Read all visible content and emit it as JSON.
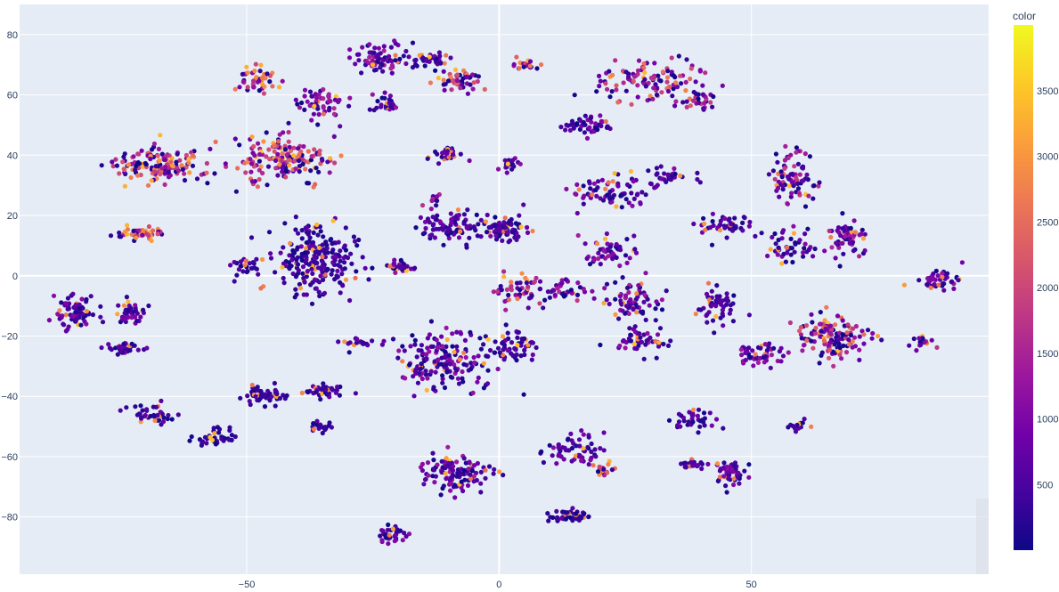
{
  "chart_data": {
    "type": "scatter",
    "title": "",
    "xlabel": "",
    "ylabel": "",
    "xlim": [
      -95,
      97
    ],
    "ylim": [
      -99,
      90
    ],
    "x_ticks": [
      -50,
      0,
      50
    ],
    "y_ticks": [
      -80,
      -60,
      -40,
      -20,
      0,
      20,
      40,
      60,
      80
    ],
    "grid": true,
    "colorbar": {
      "title": "color",
      "range": [
        0,
        4000
      ],
      "ticks": [
        500,
        1000,
        1500,
        2000,
        2500,
        3000,
        3500
      ],
      "colorscale": [
        "#0d0887",
        "#46039f",
        "#7201a8",
        "#9c179e",
        "#bd3786",
        "#d8576b",
        "#ed7953",
        "#fb9f3a",
        "#fdca26",
        "#f0f921"
      ]
    },
    "clusters": [
      {
        "cx": -68,
        "cy": 37,
        "rx": 10,
        "ry": 6,
        "n": 150,
        "mean_color": 1900
      },
      {
        "cx": -43,
        "cy": 38,
        "rx": 10,
        "ry": 8,
        "n": 160,
        "mean_color": 1600
      },
      {
        "cx": -48,
        "cy": 65,
        "rx": 4,
        "ry": 5,
        "n": 45,
        "mean_color": 1800
      },
      {
        "cx": -35,
        "cy": 57,
        "rx": 5,
        "ry": 5,
        "n": 55,
        "mean_color": 1000
      },
      {
        "cx": -24,
        "cy": 72,
        "rx": 5,
        "ry": 5,
        "n": 70,
        "mean_color": 900
      },
      {
        "cx": -14,
        "cy": 72,
        "rx": 4,
        "ry": 3,
        "n": 40,
        "mean_color": 600
      },
      {
        "cx": -8,
        "cy": 65,
        "rx": 5,
        "ry": 4,
        "n": 50,
        "mean_color": 1700
      },
      {
        "cx": -23,
        "cy": 57,
        "rx": 3,
        "ry": 3,
        "n": 25,
        "mean_color": 800
      },
      {
        "cx": -72,
        "cy": 14,
        "rx": 6,
        "ry": 2,
        "n": 45,
        "mean_color": 2100
      },
      {
        "cx": -37,
        "cy": 5,
        "rx": 8,
        "ry": 12,
        "n": 230,
        "mean_color": 500
      },
      {
        "cx": -50,
        "cy": 3,
        "rx": 3,
        "ry": 4,
        "n": 25,
        "mean_color": 400
      },
      {
        "cx": -84,
        "cy": -12,
        "rx": 4,
        "ry": 5,
        "n": 80,
        "mean_color": 700
      },
      {
        "cx": -73,
        "cy": -12,
        "rx": 3,
        "ry": 4,
        "n": 45,
        "mean_color": 700
      },
      {
        "cx": -74,
        "cy": -24,
        "rx": 4,
        "ry": 2,
        "n": 35,
        "mean_color": 600
      },
      {
        "cx": -69,
        "cy": -46,
        "rx": 4,
        "ry": 3,
        "n": 40,
        "mean_color": 500
      },
      {
        "cx": -56,
        "cy": -54,
        "rx": 4,
        "ry": 4,
        "n": 35,
        "mean_color": 300
      },
      {
        "cx": -47,
        "cy": -40,
        "rx": 5,
        "ry": 3,
        "n": 50,
        "mean_color": 400
      },
      {
        "cx": -35,
        "cy": -38,
        "rx": 4,
        "ry": 2,
        "n": 40,
        "mean_color": 500
      },
      {
        "cx": -35,
        "cy": -50,
        "rx": 2,
        "ry": 2,
        "n": 20,
        "mean_color": 400
      },
      {
        "cx": -28,
        "cy": -22,
        "rx": 3,
        "ry": 2,
        "n": 20,
        "mean_color": 500
      },
      {
        "cx": -20,
        "cy": 3,
        "rx": 3,
        "ry": 2,
        "n": 30,
        "mean_color": 800
      },
      {
        "cx": -11,
        "cy": -28,
        "rx": 10,
        "ry": 10,
        "n": 170,
        "mean_color": 800
      },
      {
        "cx": -9,
        "cy": -65,
        "rx": 7,
        "ry": 6,
        "n": 120,
        "mean_color": 900
      },
      {
        "cx": -21,
        "cy": -86,
        "rx": 3,
        "ry": 3,
        "n": 35,
        "mean_color": 800
      },
      {
        "cx": -9,
        "cy": 16,
        "rx": 7,
        "ry": 5,
        "n": 90,
        "mean_color": 600
      },
      {
        "cx": 1,
        "cy": 15,
        "rx": 4,
        "ry": 4,
        "n": 80,
        "mean_color": 500
      },
      {
        "cx": -10,
        "cy": 40,
        "rx": 3,
        "ry": 2,
        "n": 30,
        "mean_color": 600
      },
      {
        "cx": 2,
        "cy": 37,
        "rx": 2,
        "ry": 2,
        "n": 20,
        "mean_color": 800
      },
      {
        "cx": 4,
        "cy": -5,
        "rx": 6,
        "ry": 5,
        "n": 50,
        "mean_color": 1200
      },
      {
        "cx": 2,
        "cy": -24,
        "rx": 5,
        "ry": 6,
        "n": 60,
        "mean_color": 600
      },
      {
        "cx": 15,
        "cy": -58,
        "rx": 6,
        "ry": 5,
        "n": 60,
        "mean_color": 700
      },
      {
        "cx": 14,
        "cy": -80,
        "rx": 4,
        "ry": 2,
        "n": 50,
        "mean_color": 600
      },
      {
        "cx": 20,
        "cy": -64,
        "rx": 4,
        "ry": 2,
        "n": 20,
        "mean_color": 1800
      },
      {
        "cx": 17,
        "cy": 50,
        "rx": 5,
        "ry": 3,
        "n": 50,
        "mean_color": 700
      },
      {
        "cx": 30,
        "cy": 64,
        "rx": 10,
        "ry": 7,
        "n": 120,
        "mean_color": 1600
      },
      {
        "cx": 40,
        "cy": 58,
        "rx": 3,
        "ry": 3,
        "n": 25,
        "mean_color": 1300
      },
      {
        "cx": 22,
        "cy": 28,
        "rx": 8,
        "ry": 6,
        "n": 70,
        "mean_color": 700
      },
      {
        "cx": 33,
        "cy": 33,
        "rx": 5,
        "ry": 3,
        "n": 35,
        "mean_color": 700
      },
      {
        "cx": 22,
        "cy": 8,
        "rx": 6,
        "ry": 5,
        "n": 50,
        "mean_color": 900
      },
      {
        "cx": 26,
        "cy": -8,
        "rx": 6,
        "ry": 6,
        "n": 70,
        "mean_color": 900
      },
      {
        "cx": 13,
        "cy": -5,
        "rx": 4,
        "ry": 4,
        "n": 35,
        "mean_color": 1100
      },
      {
        "cx": 28,
        "cy": -22,
        "rx": 6,
        "ry": 5,
        "n": 50,
        "mean_color": 800
      },
      {
        "cx": 43,
        "cy": -10,
        "rx": 4,
        "ry": 6,
        "n": 50,
        "mean_color": 500
      },
      {
        "cx": 45,
        "cy": 17,
        "rx": 5,
        "ry": 4,
        "n": 50,
        "mean_color": 600
      },
      {
        "cx": 58,
        "cy": 33,
        "rx": 5,
        "ry": 9,
        "n": 80,
        "mean_color": 1200
      },
      {
        "cx": 58,
        "cy": 10,
        "rx": 6,
        "ry": 6,
        "n": 50,
        "mean_color": 700
      },
      {
        "cx": 69,
        "cy": 13,
        "rx": 4,
        "ry": 6,
        "n": 55,
        "mean_color": 1000
      },
      {
        "cx": 66,
        "cy": -20,
        "rx": 7,
        "ry": 7,
        "n": 140,
        "mean_color": 1700
      },
      {
        "cx": 52,
        "cy": -26,
        "rx": 5,
        "ry": 4,
        "n": 50,
        "mean_color": 900
      },
      {
        "cx": 38,
        "cy": -48,
        "rx": 4,
        "ry": 3,
        "n": 35,
        "mean_color": 600
      },
      {
        "cx": 46,
        "cy": -66,
        "rx": 3,
        "ry": 5,
        "n": 55,
        "mean_color": 700
      },
      {
        "cx": 38,
        "cy": -63,
        "rx": 3,
        "ry": 2,
        "n": 20,
        "mean_color": 500
      },
      {
        "cx": 59,
        "cy": -50,
        "rx": 2,
        "ry": 2,
        "n": 15,
        "mean_color": 500
      },
      {
        "cx": 87,
        "cy": -2,
        "rx": 5,
        "ry": 3,
        "n": 45,
        "mean_color": 800
      },
      {
        "cx": 84,
        "cy": -22,
        "rx": 2,
        "ry": 2,
        "n": 15,
        "mean_color": 1100
      },
      {
        "cx": -13,
        "cy": 25,
        "rx": 2,
        "ry": 2,
        "n": 10,
        "mean_color": 1200
      },
      {
        "cx": 5,
        "cy": 70,
        "rx": 3,
        "ry": 2,
        "n": 20,
        "mean_color": 1800
      }
    ]
  }
}
